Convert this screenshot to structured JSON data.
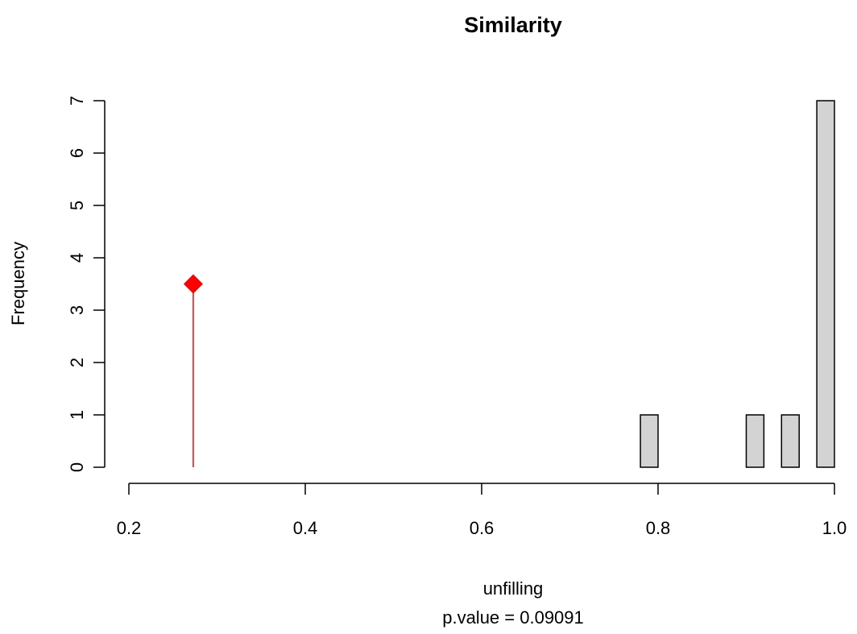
{
  "chart_data": {
    "type": "histogram",
    "title": "Similarity",
    "x_label": "unfilling",
    "subtitle": "p.value =  0.09091",
    "y_label": "Frequency",
    "bins": [
      0.78,
      0.8,
      0.82,
      0.84,
      0.86,
      0.88,
      0.9,
      0.92,
      0.94,
      0.96,
      0.98,
      1.0
    ],
    "counts": [
      1,
      0,
      0,
      0,
      0,
      0,
      1,
      0,
      1,
      0,
      7
    ],
    "color": "#d3d3d3",
    "observed": {
      "x": 0.273,
      "y": 3.5,
      "color": "#ff0000"
    },
    "xlim": [
      0.2,
      1.0
    ],
    "xticks": [
      0.2,
      0.4,
      0.6,
      0.8,
      {
        "value": 1.0,
        "label": "1.0"
      }
    ],
    "ylim": [
      0,
      7
    ],
    "yticks": [
      0,
      1,
      2,
      3,
      4,
      5,
      6,
      7
    ]
  }
}
